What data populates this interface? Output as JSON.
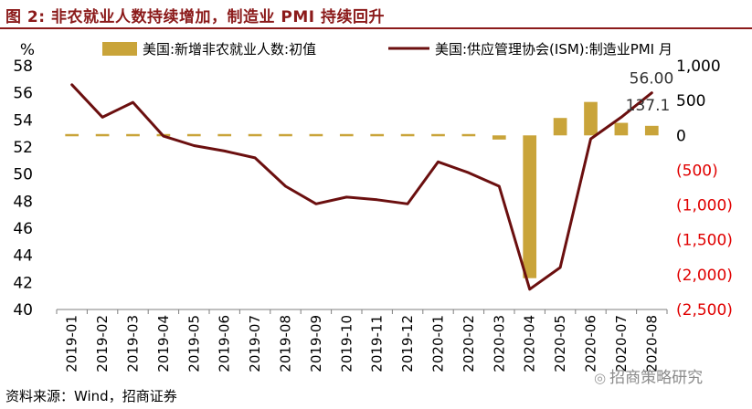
{
  "title": "图 2:  非农就业人数持续增加，制造业 PMI 持续回升",
  "source": "资料来源：Wind，招商证券",
  "watermark": "招商策略研究",
  "colors": {
    "title": "#8B1A1A",
    "bar": "#C9A43A",
    "line": "#6B0F0F",
    "negative_tick": "#E00000"
  },
  "chart_data": {
    "type": "bar+line",
    "categories": [
      "2019-01",
      "2019-02",
      "2019-03",
      "2019-04",
      "2019-05",
      "2019-06",
      "2019-07",
      "2019-08",
      "2019-09",
      "2019-10",
      "2019-11",
      "2019-12",
      "2020-01",
      "2020-02",
      "2020-03",
      "2020-04",
      "2020-05",
      "2020-06",
      "2020-07",
      "2020-08"
    ],
    "y_left": {
      "label": "%",
      "min": 40,
      "max": 58,
      "step": 2
    },
    "y_right": {
      "min": -2500,
      "max": 1000,
      "step": 500,
      "tick_labels": [
        "(2,500)",
        "(2,000)",
        "(1,500)",
        "(1,000)",
        "(500)",
        "0",
        "500",
        "1,000"
      ]
    },
    "series": [
      {
        "name": "美国:新增非农就业人数:初值",
        "type": "bar",
        "axis": "right",
        "values": [
          8,
          7,
          7,
          11,
          7,
          7,
          7,
          7,
          7,
          7,
          10,
          7,
          7,
          10,
          -60,
          -2050,
          250,
          480,
          180,
          137.1
        ]
      },
      {
        "name": "美国:供应管理协会(ISM):制造业PMI 月",
        "type": "line",
        "axis": "left",
        "values": [
          56.6,
          54.2,
          55.3,
          52.8,
          52.1,
          51.7,
          51.2,
          49.1,
          47.8,
          48.3,
          48.1,
          47.8,
          50.9,
          50.1,
          49.1,
          41.5,
          43.1,
          52.6,
          54.2,
          56.0
        ]
      }
    ],
    "annotations": [
      {
        "text": "56.00",
        "category": "2020-08",
        "series": 1
      },
      {
        "text": "137.1",
        "category": "2020-08",
        "series": 0
      }
    ],
    "grid": false,
    "legend": "top"
  }
}
